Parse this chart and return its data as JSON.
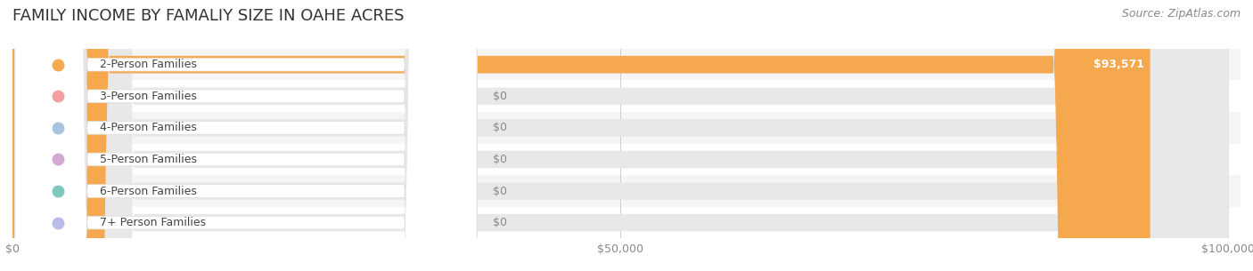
{
  "title": "FAMILY INCOME BY FAMALIY SIZE IN OAHE ACRES",
  "source": "Source: ZipAtlas.com",
  "categories": [
    "2-Person Families",
    "3-Person Families",
    "4-Person Families",
    "5-Person Families",
    "6-Person Families",
    "7+ Person Families"
  ],
  "values": [
    93571,
    0,
    0,
    0,
    0,
    0
  ],
  "bar_colors": [
    "#f5a84e",
    "#f4a0a0",
    "#a8c4e0",
    "#d4a8d4",
    "#7ec8c0",
    "#b8bce8"
  ],
  "dot_colors": [
    "#f5a84e",
    "#f4a0a0",
    "#a8c4e0",
    "#d4a8d4",
    "#7ec8c0",
    "#b8bce8"
  ],
  "background_color": "#ffffff",
  "row_bg_colors": [
    "#f5f5f5",
    "#ffffff"
  ],
  "xlim": [
    0,
    100000
  ],
  "xticks": [
    0,
    50000,
    100000
  ],
  "xtick_labels": [
    "$0",
    "$50,000",
    "$100,000"
  ],
  "value_labels": [
    "$93,571",
    "$0",
    "$0",
    "$0",
    "$0",
    "$0"
  ],
  "title_fontsize": 13,
  "label_fontsize": 9,
  "tick_fontsize": 9,
  "source_fontsize": 9,
  "bar_height": 0.55,
  "fig_width": 14.06,
  "fig_height": 3.05
}
